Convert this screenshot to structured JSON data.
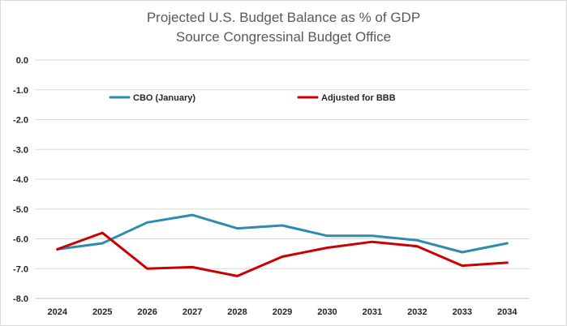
{
  "chart_data": {
    "type": "line",
    "title": "Projected U.S. Budget Balance as % of GDP",
    "subtitle": "Source Congressinal Budget Office",
    "xlabel": "",
    "ylabel": "",
    "categories": [
      "2024",
      "2025",
      "2026",
      "2027",
      "2028",
      "2029",
      "2030",
      "2031",
      "2032",
      "2033",
      "2034"
    ],
    "ylim": [
      -8.0,
      0.0
    ],
    "yticks": [
      0.0,
      -1.0,
      -2.0,
      -3.0,
      -4.0,
      -5.0,
      -6.0,
      -7.0,
      -8.0
    ],
    "ytick_labels": [
      "0.0",
      "-1.0",
      "-2.0",
      "-3.0",
      "-4.0",
      "-5.0",
      "-6.0",
      "-7.0",
      "-8.0"
    ],
    "grid": true,
    "legend_position": "top",
    "series": [
      {
        "name": "CBO (January)",
        "color": "#2E8BAF",
        "values": [
          -6.35,
          -6.15,
          -5.45,
          -5.2,
          -5.65,
          -5.55,
          -5.9,
          -5.9,
          -6.05,
          -6.45,
          -6.15
        ]
      },
      {
        "name": "Adjusted for BBB",
        "color": "#CC0000",
        "values": [
          -6.35,
          -5.8,
          -7.0,
          -6.95,
          -7.25,
          -6.6,
          -6.3,
          -6.1,
          -6.25,
          -6.9,
          -6.8
        ]
      }
    ]
  }
}
